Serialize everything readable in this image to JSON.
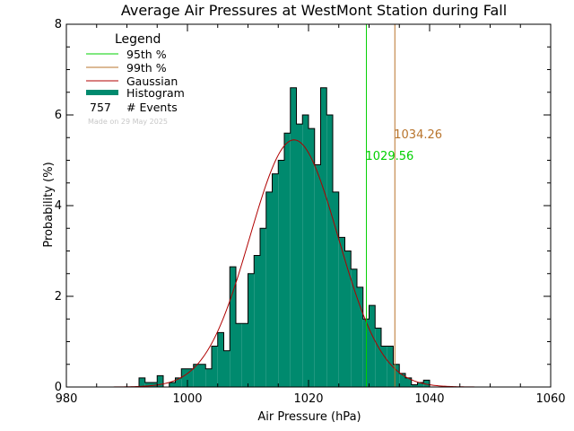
{
  "chart_data": {
    "type": "bar",
    "title": "Average Air Pressures at WestMont Station during Fall",
    "xlabel": "Air Pressure (hPa)",
    "ylabel": "Probability (%)",
    "xlim": [
      980,
      1060
    ],
    "ylim": [
      0,
      8
    ],
    "xticks": [
      "980",
      "1000",
      "1020",
      "1040",
      "1060"
    ],
    "yticks": [
      "0",
      "2",
      "4",
      "6",
      "8"
    ],
    "bin_width": 1,
    "histogram": {
      "x": [
        992,
        993,
        994,
        995,
        996,
        997,
        998,
        999,
        1000,
        1001,
        1002,
        1003,
        1004,
        1005,
        1006,
        1007,
        1008,
        1009,
        1010,
        1011,
        1012,
        1013,
        1014,
        1015,
        1016,
        1017,
        1018,
        1019,
        1020,
        1021,
        1022,
        1023,
        1024,
        1025,
        1026,
        1027,
        1028,
        1029,
        1030,
        1031,
        1032,
        1033,
        1034,
        1035,
        1036,
        1037,
        1038,
        1039,
        1040
      ],
      "values": [
        0.2,
        0.1,
        0.1,
        0.25,
        0.0,
        0.1,
        0.2,
        0.4,
        0.4,
        0.5,
        0.5,
        0.4,
        0.9,
        1.2,
        0.8,
        2.65,
        1.4,
        1.4,
        2.5,
        2.9,
        3.5,
        4.3,
        4.7,
        5.0,
        5.6,
        6.6,
        5.8,
        6.0,
        5.7,
        4.9,
        6.6,
        6.0,
        4.3,
        3.3,
        3.0,
        2.6,
        2.2,
        1.5,
        1.8,
        1.3,
        0.9,
        0.9,
        0.5,
        0.3,
        0.2,
        0.05,
        0.1,
        0.15,
        0.0
      ]
    },
    "gaussian": {
      "mean": 1017.6,
      "sigma": 7.3,
      "peak": 5.45
    },
    "percentiles": [
      {
        "label": "95th %",
        "value": 1029.56,
        "value_label": "1029.56",
        "color": "#00d000"
      },
      {
        "label": "99th %",
        "value": 1034.26,
        "value_label": "1034.26",
        "color": "#b8742c"
      }
    ],
    "legend": {
      "title": "Legend",
      "position": "top-left",
      "entries": [
        {
          "label": "95th %",
          "color": "#00d000",
          "style": "line"
        },
        {
          "label": "99th %",
          "color": "#b8742c",
          "style": "line"
        },
        {
          "label": "Gaussian",
          "color": "#b00000",
          "style": "line"
        },
        {
          "label": "Histogram",
          "color": "#008a6e",
          "style": "thick"
        }
      ],
      "events_count": "757",
      "events_label": "# Events",
      "credit": "Made on 29 May 2025"
    },
    "colors": {
      "bars": "#008a6e",
      "bar_outline": "#000000",
      "gaussian": "#b00000"
    },
    "grid": false
  }
}
